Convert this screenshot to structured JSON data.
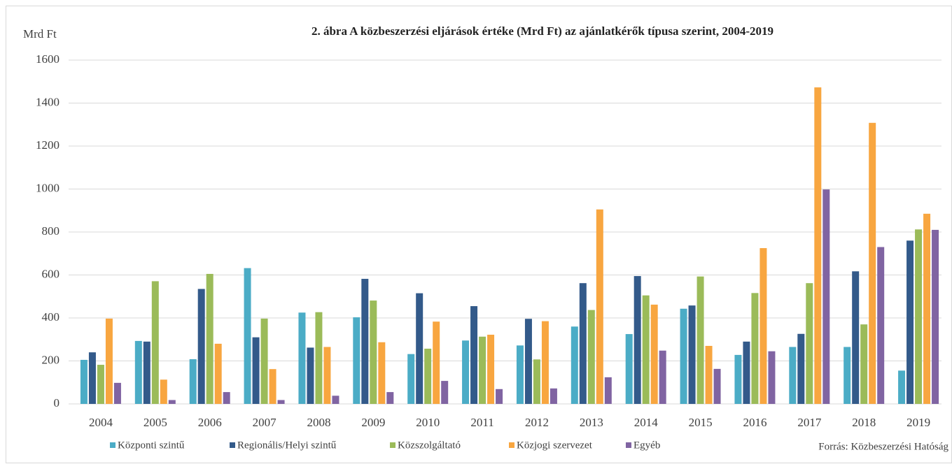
{
  "chart_data": {
    "type": "bar",
    "title": "2. ábra A közbeszerzési eljárások értéke (Mrd Ft) az ajánlatkérők típusa szerint, 2004-2019",
    "y_label": "Mrd Ft",
    "source": "Forrás: Közbeszerzési Hatóság",
    "categories": [
      "2004",
      "2005",
      "2006",
      "2007",
      "2008",
      "2009",
      "2010",
      "2011",
      "2012",
      "2013",
      "2014",
      "2015",
      "2016",
      "2017",
      "2018",
      "2019"
    ],
    "series": [
      {
        "name": "Központi szintű",
        "color": "#4bacc6",
        "values": [
          205,
          293,
          208,
          632,
          425,
          403,
          232,
          295,
          272,
          360,
          325,
          443,
          228,
          265,
          265,
          155
        ]
      },
      {
        "name": "Regionális/Helyi szintű",
        "color": "#335a8a",
        "values": [
          240,
          290,
          535,
          310,
          262,
          582,
          515,
          455,
          396,
          562,
          595,
          458,
          290,
          326,
          617,
          760
        ]
      },
      {
        "name": "Közszolgáltató",
        "color": "#9bbb59",
        "values": [
          182,
          571,
          605,
          397,
          427,
          481,
          257,
          313,
          207,
          437,
          505,
          593,
          516,
          562,
          370,
          812
        ]
      },
      {
        "name": "Közjogi szervezet",
        "color": "#f8a640",
        "values": [
          397,
          113,
          280,
          162,
          265,
          287,
          383,
          322,
          385,
          905,
          462,
          270,
          725,
          1473,
          1308,
          885
        ]
      },
      {
        "name": "Egyéb",
        "color": "#8064a2",
        "values": [
          98,
          18,
          55,
          18,
          38,
          55,
          107,
          69,
          72,
          124,
          248,
          163,
          245,
          998,
          730,
          810
        ]
      }
    ],
    "ylim": [
      0,
      1600
    ],
    "yticks": [
      0,
      200,
      400,
      600,
      800,
      1000,
      1200,
      1400,
      1600
    ],
    "grid": true,
    "legend": "bottom"
  }
}
